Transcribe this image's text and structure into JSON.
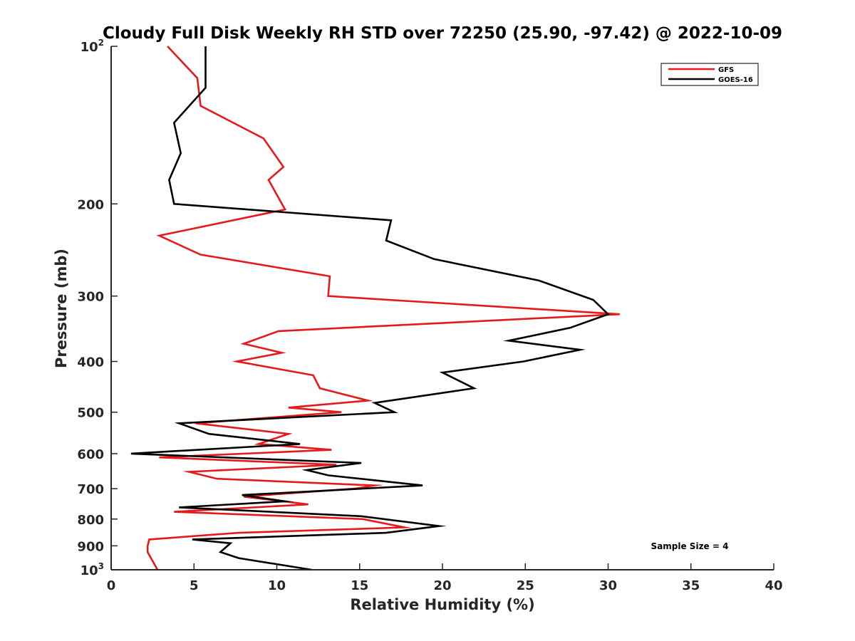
{
  "chart_data": {
    "type": "line",
    "title": "Cloudy Full Disk Weekly RH STD over 72250 (25.90, -97.42) @ 2022-10-09",
    "xlabel": "Relative Humidity (%)",
    "ylabel": "Pressure (mb)",
    "xlim": [
      0,
      40
    ],
    "ylim": [
      100,
      1000
    ],
    "y_scale": "log",
    "y_reversed": true,
    "grid": false,
    "legend_position": "top-right",
    "x_ticks": [
      "0",
      "5",
      "10",
      "15",
      "20",
      "25",
      "30",
      "35",
      "40"
    ],
    "y_ticks": [
      {
        "base": "10",
        "exp": "2"
      },
      {
        "base": "200",
        "exp": ""
      },
      {
        "base": "300",
        "exp": ""
      },
      {
        "base": "400",
        "exp": ""
      },
      {
        "base": "500",
        "exp": ""
      },
      {
        "base": "600",
        "exp": ""
      },
      {
        "base": "700",
        "exp": ""
      },
      {
        "base": "800",
        "exp": ""
      },
      {
        "base": "900",
        "exp": ""
      },
      {
        "base": "10",
        "exp": "3"
      }
    ],
    "series": [
      {
        "name": "GFS",
        "color": "#e41a1c",
        "points": [
          [
            3.4,
            100
          ],
          [
            5.2,
            115
          ],
          [
            5.4,
            130
          ],
          [
            9.2,
            150
          ],
          [
            10.4,
            170
          ],
          [
            9.5,
            180
          ],
          [
            10.5,
            205
          ],
          [
            2.9,
            230
          ],
          [
            5.4,
            250
          ],
          [
            13.2,
            275
          ],
          [
            13.1,
            300
          ],
          [
            30.7,
            325
          ],
          [
            10.1,
            350
          ],
          [
            8.0,
            370
          ],
          [
            10.3,
            385
          ],
          [
            7.6,
            400
          ],
          [
            12.2,
            425
          ],
          [
            12.6,
            450
          ],
          [
            15.5,
            475
          ],
          [
            10.7,
            490
          ],
          [
            13.9,
            500
          ],
          [
            5.1,
            525
          ],
          [
            10.7,
            550
          ],
          [
            8.9,
            575
          ],
          [
            13.3,
            590
          ],
          [
            2.9,
            610
          ],
          [
            13.6,
            630
          ],
          [
            4.7,
            650
          ],
          [
            6.4,
            670
          ],
          [
            15.9,
            690
          ],
          [
            14.7,
            700
          ],
          [
            8.0,
            725
          ],
          [
            11.9,
            750
          ],
          [
            3.8,
            775
          ],
          [
            15.2,
            800
          ],
          [
            17.7,
            830
          ],
          [
            7.7,
            850
          ],
          [
            2.3,
            875
          ],
          [
            2.2,
            900
          ],
          [
            2.2,
            925
          ],
          [
            2.8,
            1000
          ]
        ]
      },
      {
        "name": "GOES-16",
        "color": "#000000",
        "points": [
          [
            5.7,
            100
          ],
          [
            5.7,
            120
          ],
          [
            3.8,
            140
          ],
          [
            4.2,
            160
          ],
          [
            3.5,
            180
          ],
          [
            3.8,
            200
          ],
          [
            16.9,
            215
          ],
          [
            16.6,
            235
          ],
          [
            19.5,
            255
          ],
          [
            25.8,
            280
          ],
          [
            29.1,
            305
          ],
          [
            30.0,
            325
          ],
          [
            27.7,
            345
          ],
          [
            24.0,
            365
          ],
          [
            28.3,
            380
          ],
          [
            24.9,
            400
          ],
          [
            20.0,
            420
          ],
          [
            21.9,
            450
          ],
          [
            15.9,
            480
          ],
          [
            17.1,
            500
          ],
          [
            4.1,
            525
          ],
          [
            5.9,
            550
          ],
          [
            11.4,
            575
          ],
          [
            1.2,
            600
          ],
          [
            15.1,
            625
          ],
          [
            11.8,
            645
          ],
          [
            13.1,
            660
          ],
          [
            18.8,
            690
          ],
          [
            7.9,
            720
          ],
          [
            10.5,
            740
          ],
          [
            4.1,
            760
          ],
          [
            15.1,
            790
          ],
          [
            19.8,
            825
          ],
          [
            16.6,
            850
          ],
          [
            4.9,
            875
          ],
          [
            7.2,
            890
          ],
          [
            6.6,
            925
          ],
          [
            7.7,
            950
          ],
          [
            12.1,
            1000
          ]
        ]
      }
    ],
    "annotation": "Sample Size = 4"
  }
}
